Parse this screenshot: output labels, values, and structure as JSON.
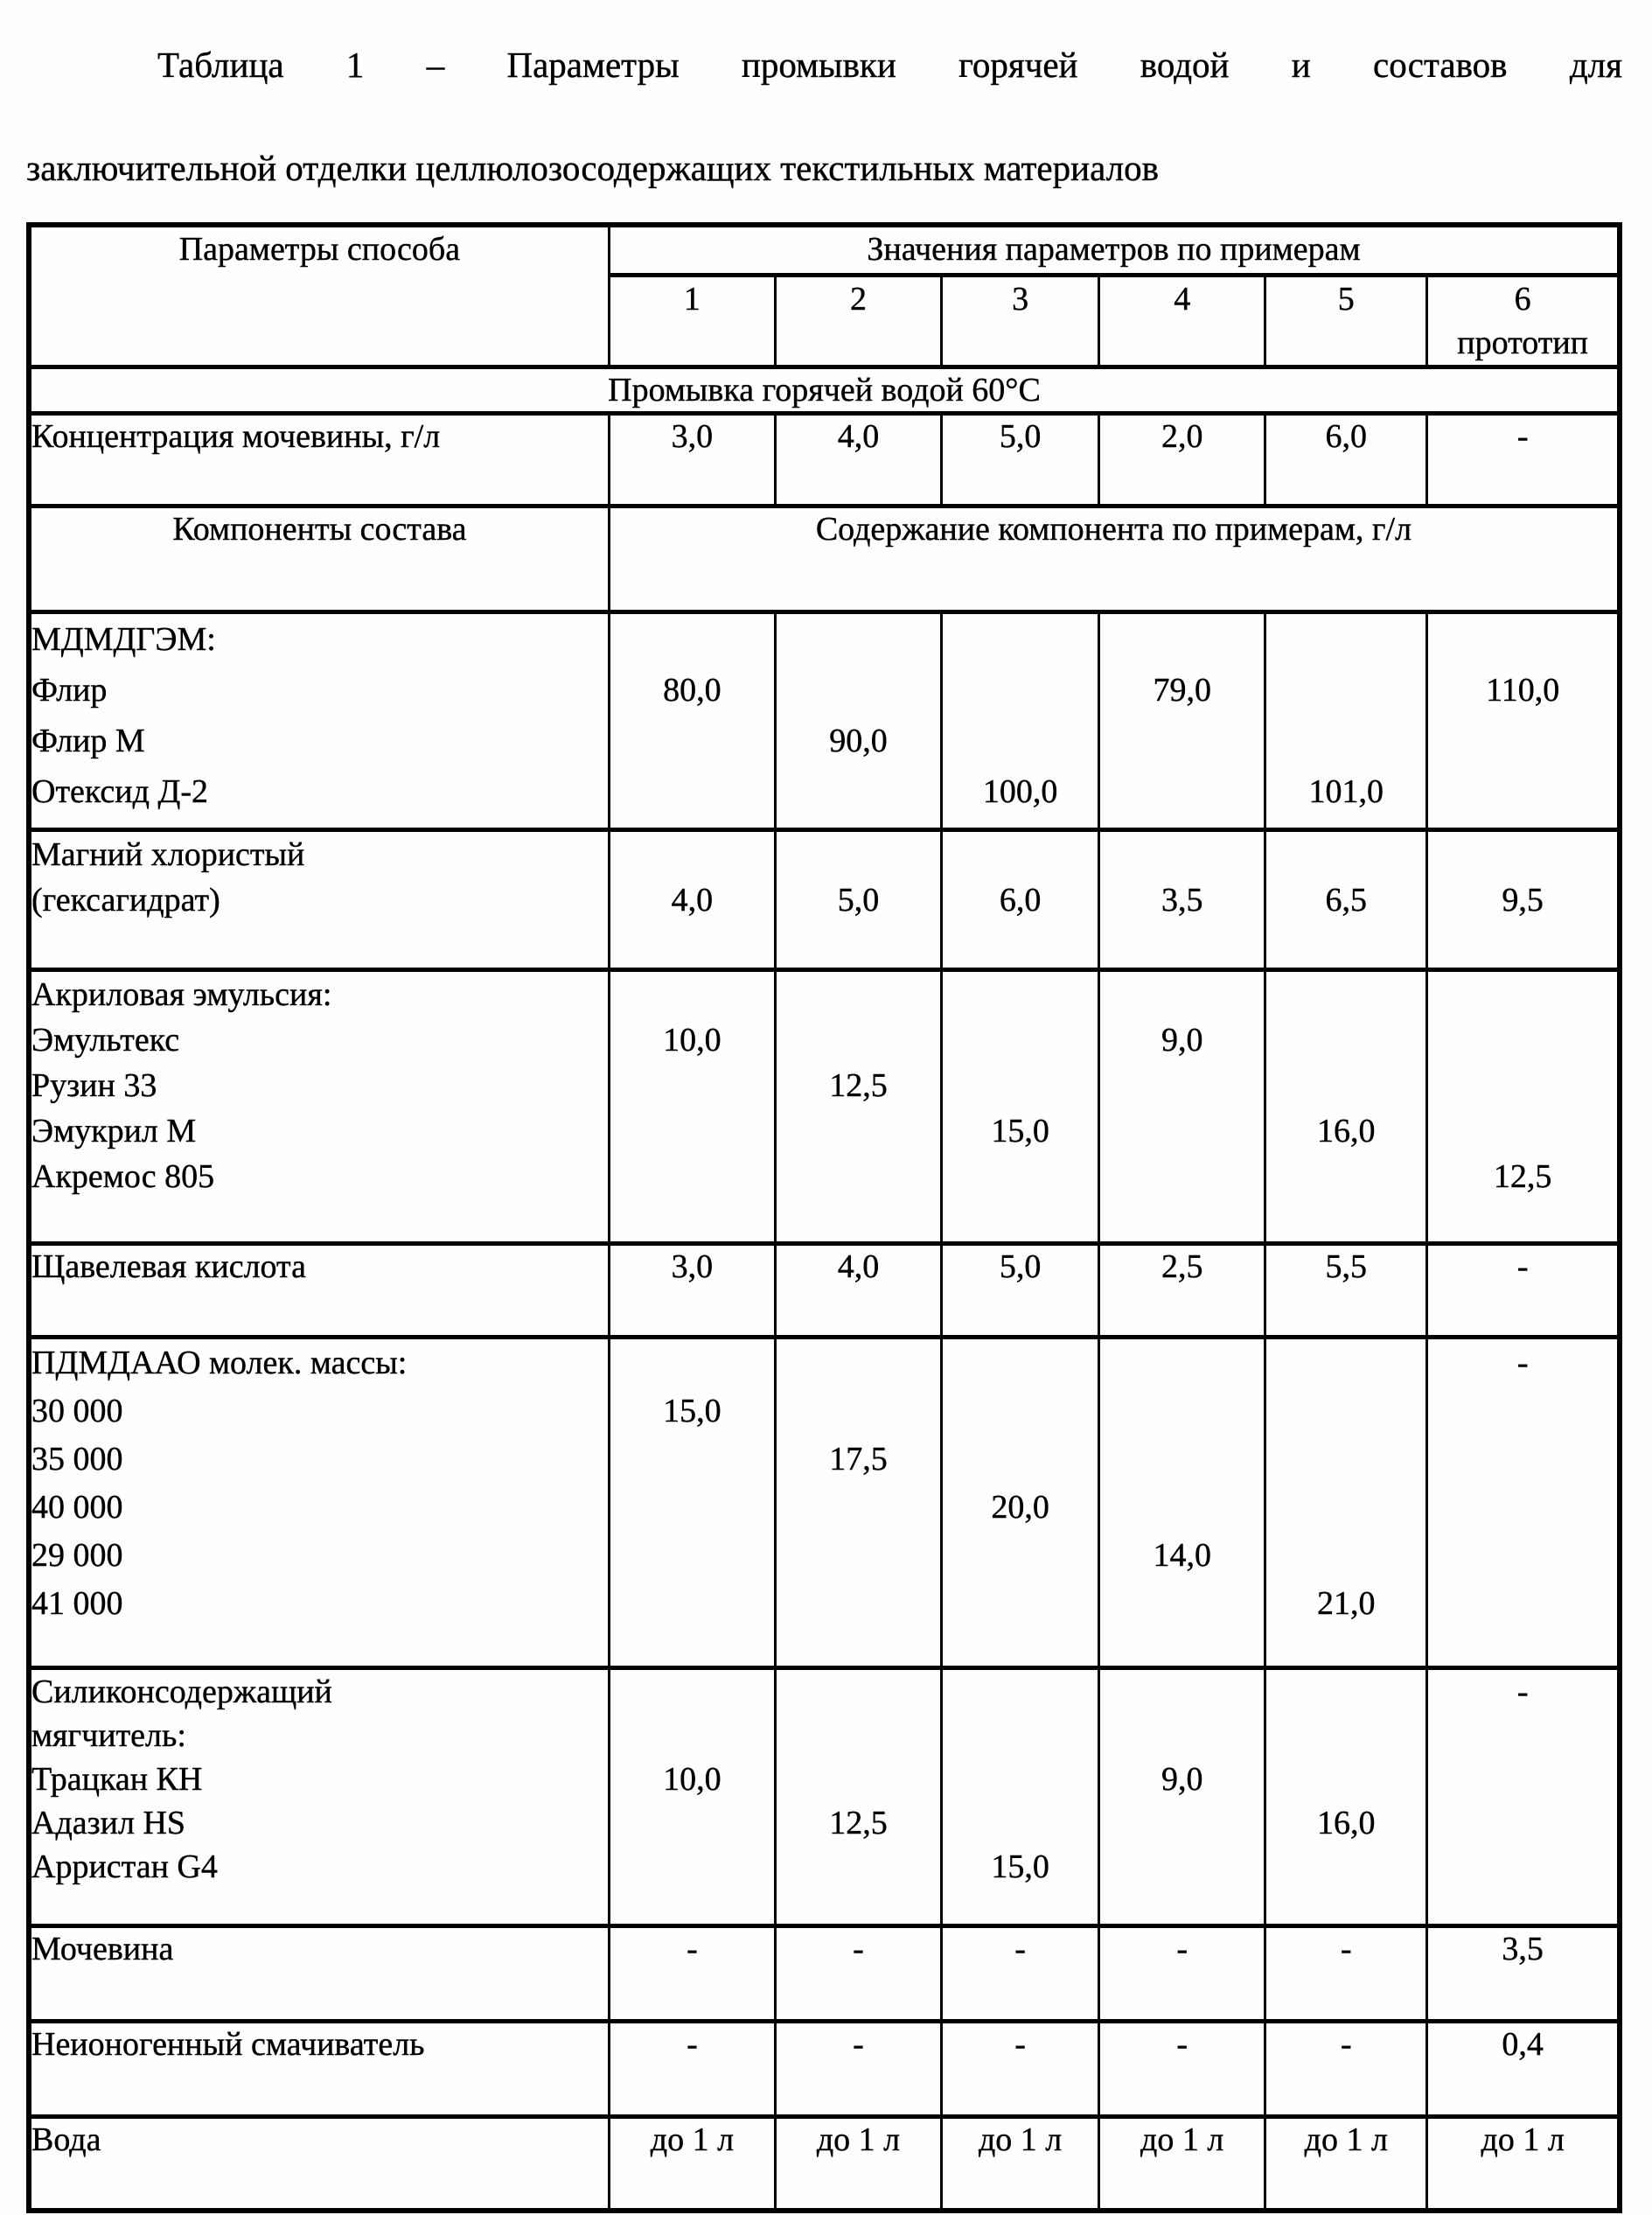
{
  "caption": {
    "line1": "Таблица 1 – Параметры промывки горячей водой и составов для",
    "line2": "заключительной отделки целлюлозосодержащих текстильных материалов"
  },
  "table": {
    "header": {
      "params_label": "Параметры способа",
      "values_label": "Значения параметров по примерам",
      "examples": [
        "1",
        "2",
        "3",
        "4",
        "5",
        "6"
      ],
      "prototype_label": "прототип"
    },
    "rows": [
      {
        "type": "span",
        "name": "hot-water-wash-row",
        "text": "Промывка горячей водой 60°С"
      },
      {
        "type": "data",
        "name": "urea-concentration-row",
        "label": {
          "lines": [
            "Концентрация мочевины, г/л"
          ]
        },
        "cells": [
          [
            "3,0"
          ],
          [
            "4,0"
          ],
          [
            "5,0"
          ],
          [
            "2,0"
          ],
          [
            "6,0"
          ],
          [
            "-"
          ]
        ]
      },
      {
        "type": "subheader",
        "name": "components-header-row",
        "label": "Компоненты состава",
        "text": "Содержание компонента по примерам, г/л"
      },
      {
        "type": "data",
        "name": "mdmdgem-row",
        "label": {
          "lines": [
            "МДМДГЭМ:",
            "Флир",
            "Флир М",
            "Отексид Д-2"
          ]
        },
        "cells": [
          [
            "",
            "80,0"
          ],
          [
            "",
            "",
            "90,0"
          ],
          [
            "",
            "",
            "",
            "100,0"
          ],
          [
            "",
            "79,0"
          ],
          [
            "",
            "",
            "",
            "101,0"
          ],
          [
            "",
            "110,0"
          ]
        ]
      },
      {
        "type": "data",
        "name": "magnesium-chloride-row",
        "label": {
          "lines": [
            "Магний хлористый",
            "(гексагидрат)"
          ]
        },
        "cells": [
          [
            "",
            "4,0"
          ],
          [
            "",
            "5,0"
          ],
          [
            "",
            "6,0"
          ],
          [
            "",
            "3,5"
          ],
          [
            "",
            "6,5"
          ],
          [
            "",
            "9,5"
          ]
        ]
      },
      {
        "type": "data",
        "name": "acrylic-emulsion-row",
        "label": {
          "lines": [
            "Акриловая эмульсия:",
            "Эмультекс",
            "Рузин 33",
            "Эмукрил М",
            "Акремос 805"
          ]
        },
        "cells": [
          [
            "",
            "10,0"
          ],
          [
            "",
            "",
            "12,5"
          ],
          [
            "",
            "",
            "",
            "15,0"
          ],
          [
            "",
            "9,0"
          ],
          [
            "",
            "",
            "",
            "16,0"
          ],
          [
            "",
            "",
            "",
            "",
            "12,5"
          ]
        ]
      },
      {
        "type": "data",
        "name": "oxalic-acid-row",
        "label": {
          "lines": [
            "Щавелевая кислота"
          ]
        },
        "cells": [
          [
            "3,0"
          ],
          [
            "4,0"
          ],
          [
            "5,0"
          ],
          [
            "2,5"
          ],
          [
            "5,5"
          ],
          [
            "-"
          ]
        ]
      },
      {
        "type": "data",
        "name": "pdmdaao-row",
        "label": {
          "lines": [
            "ПДМДААО молек. массы:",
            "30 000",
            "35 000",
            "40 000",
            "29 000",
            "41 000"
          ]
        },
        "cells": [
          [
            "",
            "15,0"
          ],
          [
            "",
            "",
            "17,5"
          ],
          [
            "",
            "",
            "",
            "20,0"
          ],
          [
            "",
            "",
            "",
            "",
            "14,0"
          ],
          [
            "",
            "",
            "",
            "",
            "",
            "21,0"
          ],
          [
            "-"
          ]
        ]
      },
      {
        "type": "data",
        "name": "silicone-softener-row",
        "label": {
          "lines": [
            "Силиконсодержащий",
            "мягчитель:",
            "Трацкан КН",
            "Адазил HS",
            "Арристан G4"
          ]
        },
        "cells": [
          [
            "",
            "",
            "10,0"
          ],
          [
            "",
            "",
            "",
            "12,5"
          ],
          [
            "",
            "",
            "",
            "",
            "15,0"
          ],
          [
            "",
            "",
            "9,0"
          ],
          [
            "",
            "",
            "",
            "16,0"
          ],
          [
            "-"
          ]
        ]
      },
      {
        "type": "data",
        "name": "urea-row",
        "label": {
          "lines": [
            "Мочевина"
          ]
        },
        "cells": [
          [
            "-"
          ],
          [
            "-"
          ],
          [
            "-"
          ],
          [
            "-"
          ],
          [
            "-"
          ],
          [
            "3,5"
          ]
        ]
      },
      {
        "type": "data",
        "name": "nonionic-wetting-agent-row",
        "label": {
          "lines": [
            "Неионогенный смачиватель"
          ]
        },
        "cells": [
          [
            "-"
          ],
          [
            "-"
          ],
          [
            "-"
          ],
          [
            "-"
          ],
          [
            "-"
          ],
          [
            "0,4"
          ]
        ]
      },
      {
        "type": "data",
        "name": "water-row",
        "label": {
          "lines": [
            "Вода"
          ]
        },
        "cells": [
          [
            "до 1 л"
          ],
          [
            "до 1 л"
          ],
          [
            "до 1 л"
          ],
          [
            "до 1 л"
          ],
          [
            "до 1 л"
          ],
          [
            "до 1 л"
          ]
        ]
      }
    ]
  }
}
